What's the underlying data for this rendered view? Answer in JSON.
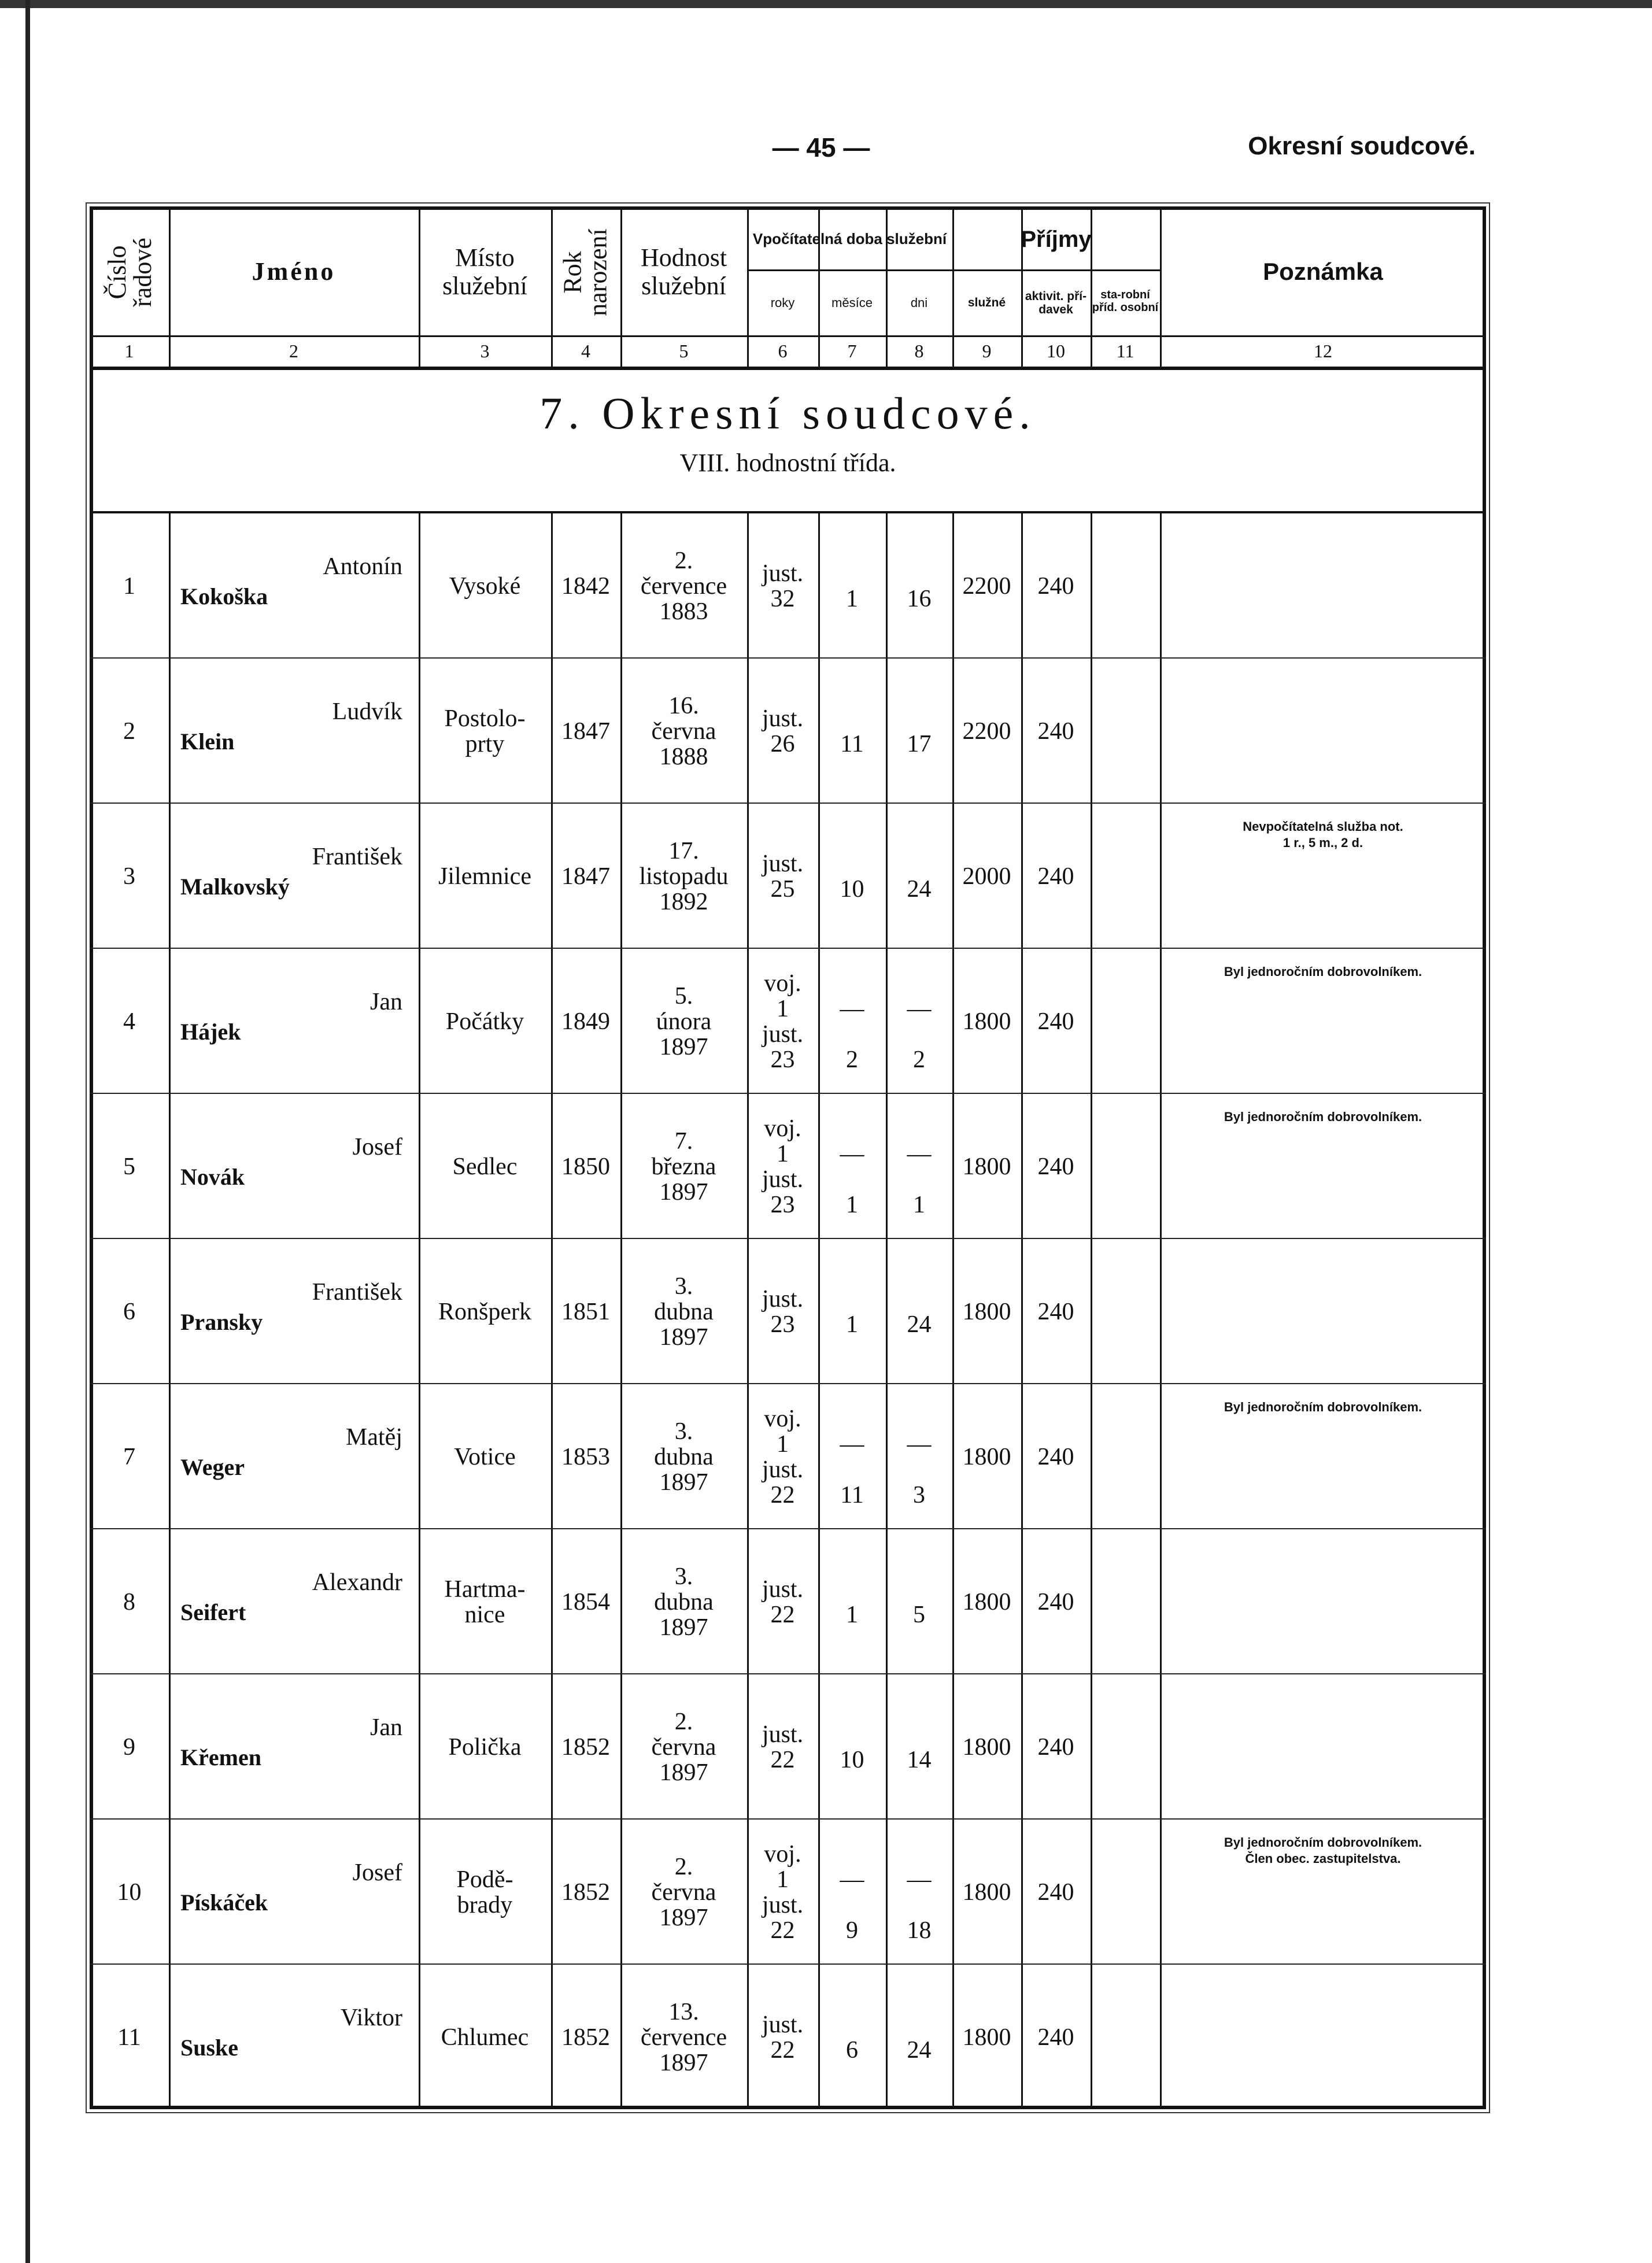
{
  "page": {
    "number": "— 45 —",
    "running_head": "Okresní soudcové."
  },
  "header": {
    "col1": "Číslo řadové",
    "col2": "Jméno",
    "col3": "Místo služební",
    "col4": "Rok narození",
    "col5": "Hodnost služební",
    "service_group": "Vpočítatelná doba služební",
    "service_years": "roky",
    "service_months": "měsíce",
    "service_days": "dni",
    "income_group": "Příjmy",
    "income_salary": "služné",
    "income_activity": "aktivit. pří-davek",
    "income_age": "sta-robní příd. osobní",
    "col12": "Poznámka",
    "numbers": [
      "1",
      "2",
      "3",
      "4",
      "5",
      "6",
      "7",
      "8",
      "9",
      "10",
      "11",
      "12"
    ]
  },
  "section": {
    "title": "7. Okresní soudcové.",
    "subtitle": "VIII. hodnostní třída."
  },
  "rows": [
    {
      "no": "1",
      "first": "Antonín",
      "last": "Kokoška",
      "place": [
        "Vysoké"
      ],
      "born": "1842",
      "rank": [
        "2.",
        "července",
        "1883"
      ],
      "years": [
        "just.",
        "32"
      ],
      "months": [
        "",
        "1"
      ],
      "days": [
        "",
        "16"
      ],
      "salary": "2200",
      "activity": "240",
      "age": "",
      "note": []
    },
    {
      "no": "2",
      "first": "Ludvík",
      "last": "Klein",
      "place": [
        "Postolo-",
        "prty"
      ],
      "born": "1847",
      "rank": [
        "16.",
        "června",
        "1888"
      ],
      "years": [
        "just.",
        "26"
      ],
      "months": [
        "",
        "11"
      ],
      "days": [
        "",
        "17"
      ],
      "salary": "2200",
      "activity": "240",
      "age": "",
      "note": []
    },
    {
      "no": "3",
      "first": "František",
      "last": "Malkovský",
      "place": [
        "Jilemnice"
      ],
      "born": "1847",
      "rank": [
        "17.",
        "listopadu",
        "1892"
      ],
      "years": [
        "just.",
        "25"
      ],
      "months": [
        "",
        "10"
      ],
      "days": [
        "",
        "24"
      ],
      "salary": "2000",
      "activity": "240",
      "age": "",
      "note": [
        "Nevpočítatelná služba not.",
        "1 r., 5 m., 2 d."
      ]
    },
    {
      "no": "4",
      "first": "Jan",
      "last": "Hájek",
      "place": [
        "Počátky"
      ],
      "born": "1849",
      "rank": [
        "5.",
        "února",
        "1897"
      ],
      "years": [
        "voj.",
        "1",
        "just.",
        "23"
      ],
      "months": [
        "",
        "—",
        "",
        "2"
      ],
      "days": [
        "",
        "—",
        "",
        "2"
      ],
      "salary": "1800",
      "activity": "240",
      "age": "",
      "note": [
        "Byl jednoročním dobrovolníkem."
      ]
    },
    {
      "no": "5",
      "first": "Josef",
      "last": "Novák",
      "place": [
        "Sedlec"
      ],
      "born": "1850",
      "rank": [
        "7.",
        "března",
        "1897"
      ],
      "years": [
        "voj.",
        "1",
        "just.",
        "23"
      ],
      "months": [
        "",
        "—",
        "",
        "1"
      ],
      "days": [
        "",
        "—",
        "",
        "1"
      ],
      "salary": "1800",
      "activity": "240",
      "age": "",
      "note": [
        "Byl jednoročním dobrovolníkem."
      ]
    },
    {
      "no": "6",
      "first": "František",
      "last": "Pransky",
      "place": [
        "Ronšperk"
      ],
      "born": "1851",
      "rank": [
        "3.",
        "dubna",
        "1897"
      ],
      "years": [
        "just.",
        "23"
      ],
      "months": [
        "",
        "1"
      ],
      "days": [
        "",
        "24"
      ],
      "salary": "1800",
      "activity": "240",
      "age": "",
      "note": []
    },
    {
      "no": "7",
      "first": "Matěj",
      "last": "Weger",
      "place": [
        "Votice"
      ],
      "born": "1853",
      "rank": [
        "3.",
        "dubna",
        "1897"
      ],
      "years": [
        "voj.",
        "1",
        "just.",
        "22"
      ],
      "months": [
        "",
        "—",
        "",
        "11"
      ],
      "days": [
        "",
        "—",
        "",
        "3"
      ],
      "salary": "1800",
      "activity": "240",
      "age": "",
      "note": [
        "Byl jednoročním dobrovolníkem."
      ]
    },
    {
      "no": "8",
      "first": "Alexandr",
      "last": "Seifert",
      "place": [
        "Hartma-",
        "nice"
      ],
      "born": "1854",
      "rank": [
        "3.",
        "dubna",
        "1897"
      ],
      "years": [
        "just.",
        "22"
      ],
      "months": [
        "",
        "1"
      ],
      "days": [
        "",
        "5"
      ],
      "salary": "1800",
      "activity": "240",
      "age": "",
      "note": []
    },
    {
      "no": "9",
      "first": "Jan",
      "last": "Křemen",
      "place": [
        "Polička"
      ],
      "born": "1852",
      "rank": [
        "2.",
        "června",
        "1897"
      ],
      "years": [
        "just.",
        "22"
      ],
      "months": [
        "",
        "10"
      ],
      "days": [
        "",
        "14"
      ],
      "salary": "1800",
      "activity": "240",
      "age": "",
      "note": []
    },
    {
      "no": "10",
      "first": "Josef",
      "last": "Pískáček",
      "place": [
        "Podě-",
        "brady"
      ],
      "born": "1852",
      "rank": [
        "2.",
        "června",
        "1897"
      ],
      "years": [
        "voj.",
        "1",
        "just.",
        "22"
      ],
      "months": [
        "",
        "—",
        "",
        "9"
      ],
      "days": [
        "",
        "—",
        "",
        "18"
      ],
      "salary": "1800",
      "activity": "240",
      "age": "",
      "note": [
        "Byl jednoročním dobrovolníkem.",
        "Člen obec. zastupitelstva."
      ]
    },
    {
      "no": "11",
      "first": "Viktor",
      "last": "Suske",
      "place": [
        "Chlumec"
      ],
      "born": "1852",
      "rank": [
        "13.",
        "července",
        "1897"
      ],
      "years": [
        "just.",
        "22"
      ],
      "months": [
        "",
        "6"
      ],
      "days": [
        "",
        "24"
      ],
      "salary": "1800",
      "activity": "240",
      "age": "",
      "note": []
    }
  ]
}
